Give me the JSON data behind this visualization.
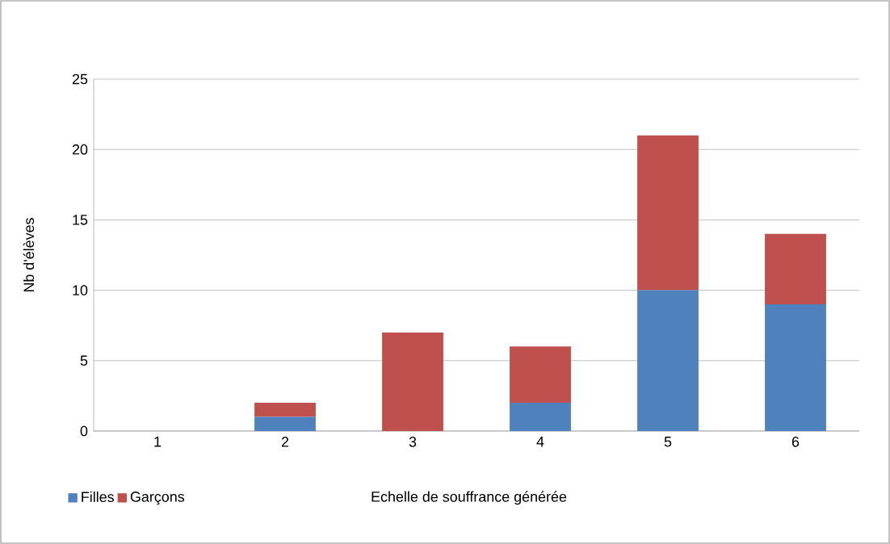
{
  "chart_data": {
    "type": "bar",
    "stacked": true,
    "xlabel": "Echelle de souffrance générée",
    "ylabel": "Nb d'élèves",
    "categories": [
      "1",
      "2",
      "3",
      "4",
      "5",
      "6"
    ],
    "series": [
      {
        "name": "Filles",
        "color": "#4f81bd",
        "values": [
          0,
          1,
          0,
          2,
          10,
          9
        ]
      },
      {
        "name": "Garçons",
        "color": "#c0504d",
        "values": [
          0,
          1,
          7,
          4,
          11,
          5
        ]
      }
    ],
    "ylim": [
      0,
      25
    ],
    "yticks": [
      0,
      5,
      10,
      15,
      20,
      25
    ],
    "grid": "y",
    "legend": "bottom left"
  }
}
